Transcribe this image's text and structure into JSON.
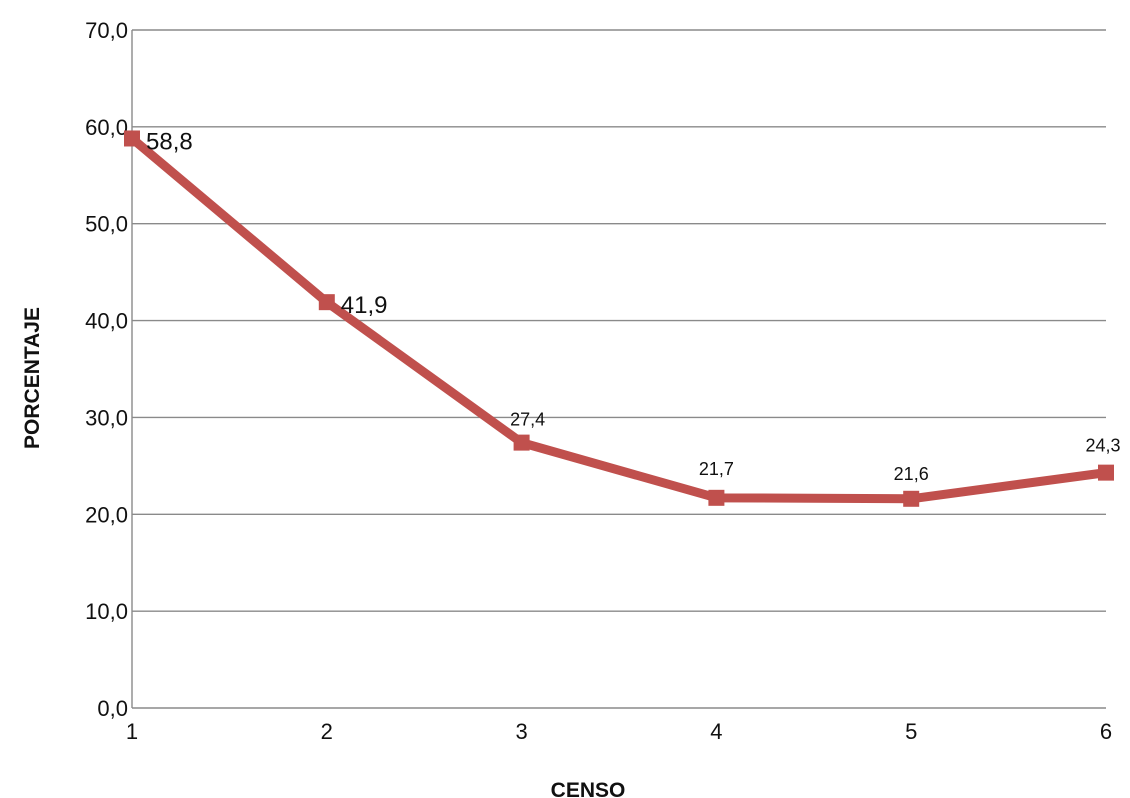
{
  "chart_data": {
    "type": "line",
    "title": "",
    "xlabel": "CENSO",
    "ylabel": "PORCENTAJE",
    "categories": [
      "1",
      "2",
      "3",
      "4",
      "5",
      "6"
    ],
    "x": [
      1,
      2,
      3,
      4,
      5,
      6
    ],
    "series": [
      {
        "values": [
          58.8,
          41.9,
          27.4,
          21.7,
          21.6,
          24.3
        ],
        "data_labels": [
          "58,8",
          "41,9",
          "27,4",
          "21,7",
          "21,6",
          "24,3"
        ],
        "color": "#c0504d"
      }
    ],
    "ylim": [
      0,
      70
    ],
    "y_ticks": [
      0,
      10,
      20,
      30,
      40,
      50,
      60,
      70
    ],
    "y_tick_labels": [
      "0,0",
      "10,0",
      "20,0",
      "30,0",
      "40,0",
      "50,0",
      "60,0",
      "70,0"
    ],
    "grid": true,
    "legend": "none",
    "marker": "square"
  }
}
